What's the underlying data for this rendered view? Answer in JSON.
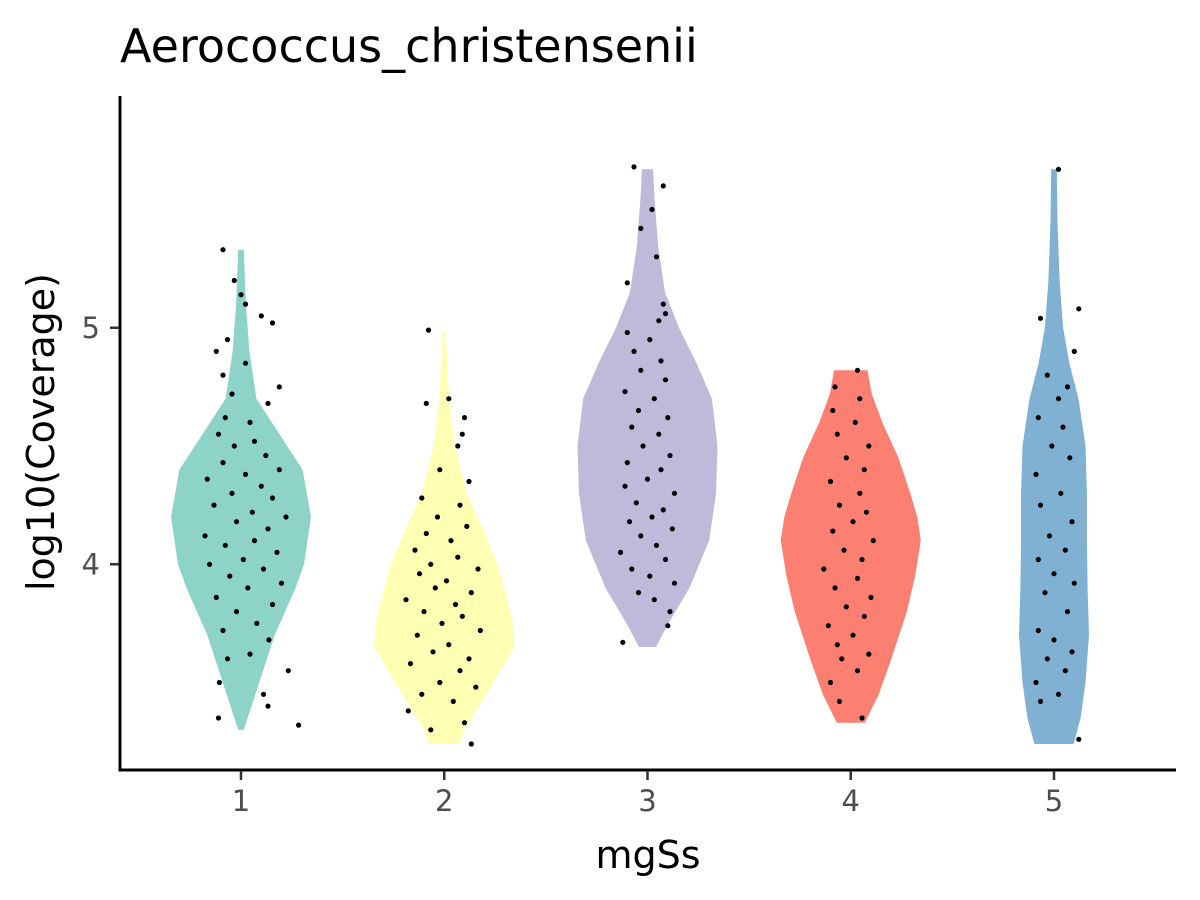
{
  "chart_data": {
    "type": "violin",
    "title": "Aerococcus_christensenii",
    "xlabel": "mgSs",
    "ylabel": "log10(Coverage)",
    "categories": [
      "1",
      "2",
      "3",
      "4",
      "5"
    ],
    "ylim": [
      3.13,
      5.98
    ],
    "yticks": [
      4,
      5
    ],
    "grid": false,
    "legend": "none",
    "groups": [
      {
        "category": "1",
        "color": "#8dd3c7",
        "min": 3.3,
        "max": 5.33,
        "profile": [
          [
            3.3,
            0.04
          ],
          [
            3.5,
            0.26
          ],
          [
            3.7,
            0.48
          ],
          [
            3.9,
            0.78
          ],
          [
            4.0,
            0.9
          ],
          [
            4.2,
            1.0
          ],
          [
            4.4,
            0.88
          ],
          [
            4.55,
            0.55
          ],
          [
            4.7,
            0.22
          ],
          [
            4.9,
            0.12
          ],
          [
            5.1,
            0.07
          ],
          [
            5.33,
            0.04
          ]
        ],
        "points": [
          [
            3.32,
            1.28
          ],
          [
            3.4,
            0.6
          ],
          [
            3.35,
            -0.5
          ],
          [
            3.45,
            0.5
          ],
          [
            3.5,
            -0.48
          ],
          [
            3.55,
            1.05
          ],
          [
            3.6,
            -0.3
          ],
          [
            3.62,
            0.2
          ],
          [
            3.68,
            0.62
          ],
          [
            3.72,
            -0.4
          ],
          [
            3.75,
            0.35
          ],
          [
            3.8,
            -0.1
          ],
          [
            3.83,
            0.7
          ],
          [
            3.86,
            -0.55
          ],
          [
            3.9,
            0.15
          ],
          [
            3.92,
            0.9
          ],
          [
            3.95,
            -0.25
          ],
          [
            3.98,
            0.5
          ],
          [
            4.0,
            -0.7
          ],
          [
            4.02,
            0.05
          ],
          [
            4.05,
            0.8
          ],
          [
            4.08,
            -0.35
          ],
          [
            4.1,
            0.3
          ],
          [
            4.12,
            -0.8
          ],
          [
            4.15,
            0.6
          ],
          [
            4.18,
            -0.1
          ],
          [
            4.2,
            1.0
          ],
          [
            4.22,
            0.25
          ],
          [
            4.25,
            -0.6
          ],
          [
            4.28,
            0.7
          ],
          [
            4.3,
            -0.2
          ],
          [
            4.33,
            0.45
          ],
          [
            4.36,
            -0.75
          ],
          [
            4.38,
            0.1
          ],
          [
            4.4,
            0.85
          ],
          [
            4.43,
            -0.4
          ],
          [
            4.46,
            0.55
          ],
          [
            4.5,
            -0.15
          ],
          [
            4.52,
            0.3
          ],
          [
            4.55,
            -0.5
          ],
          [
            4.6,
            0.2
          ],
          [
            4.62,
            -0.35
          ],
          [
            4.68,
            0.6
          ],
          [
            4.72,
            -0.2
          ],
          [
            4.75,
            0.85
          ],
          [
            4.8,
            -0.4
          ],
          [
            4.85,
            0.1
          ],
          [
            4.9,
            -0.55
          ],
          [
            4.95,
            -0.3
          ],
          [
            5.02,
            0.7
          ],
          [
            5.05,
            0.45
          ],
          [
            5.1,
            0.1
          ],
          [
            5.14,
            0.0
          ],
          [
            5.2,
            -0.15
          ],
          [
            5.33,
            -0.4
          ]
        ]
      },
      {
        "category": "2",
        "color": "#ffffb3",
        "min": 3.24,
        "max": 4.99,
        "profile": [
          [
            3.24,
            0.22
          ],
          [
            3.3,
            0.28
          ],
          [
            3.45,
            0.6
          ],
          [
            3.55,
            0.8
          ],
          [
            3.65,
            1.0
          ],
          [
            3.75,
            0.98
          ],
          [
            3.85,
            0.9
          ],
          [
            4.0,
            0.76
          ],
          [
            4.15,
            0.55
          ],
          [
            4.3,
            0.32
          ],
          [
            4.5,
            0.15
          ],
          [
            4.7,
            0.07
          ],
          [
            4.85,
            0.04
          ],
          [
            4.99,
            0.02
          ]
        ],
        "points": [
          [
            3.24,
            0.6
          ],
          [
            3.3,
            -0.3
          ],
          [
            3.33,
            0.45
          ],
          [
            3.38,
            -0.8
          ],
          [
            3.42,
            0.2
          ],
          [
            3.45,
            -0.5
          ],
          [
            3.48,
            0.7
          ],
          [
            3.5,
            -0.1
          ],
          [
            3.55,
            0.35
          ],
          [
            3.58,
            -0.75
          ],
          [
            3.6,
            0.55
          ],
          [
            3.63,
            -0.25
          ],
          [
            3.66,
            0.1
          ],
          [
            3.7,
            -0.6
          ],
          [
            3.72,
            0.8
          ],
          [
            3.75,
            -0.05
          ],
          [
            3.78,
            0.4
          ],
          [
            3.8,
            -0.45
          ],
          [
            3.83,
            0.25
          ],
          [
            3.85,
            -0.85
          ],
          [
            3.88,
            0.6
          ],
          [
            3.9,
            -0.2
          ],
          [
            3.93,
            0.05
          ],
          [
            3.96,
            -0.55
          ],
          [
            3.98,
            0.75
          ],
          [
            4.0,
            -0.3
          ],
          [
            4.03,
            0.3
          ],
          [
            4.06,
            -0.65
          ],
          [
            4.1,
            0.15
          ],
          [
            4.13,
            -0.4
          ],
          [
            4.16,
            0.5
          ],
          [
            4.2,
            -0.15
          ],
          [
            4.25,
            0.35
          ],
          [
            4.28,
            -0.5
          ],
          [
            4.35,
            0.55
          ],
          [
            4.4,
            -0.1
          ],
          [
            4.5,
            0.3
          ],
          [
            4.55,
            0.4
          ],
          [
            4.62,
            0.45
          ],
          [
            4.68,
            -0.4
          ],
          [
            4.7,
            0.1
          ],
          [
            4.99,
            -0.35
          ]
        ]
      },
      {
        "category": "3",
        "color": "#bebada",
        "min": 3.65,
        "max": 5.67,
        "profile": [
          [
            3.65,
            0.12
          ],
          [
            3.75,
            0.3
          ],
          [
            3.9,
            0.6
          ],
          [
            4.1,
            0.88
          ],
          [
            4.3,
            0.98
          ],
          [
            4.5,
            1.0
          ],
          [
            4.7,
            0.92
          ],
          [
            4.85,
            0.7
          ],
          [
            5.0,
            0.45
          ],
          [
            5.15,
            0.25
          ],
          [
            5.35,
            0.15
          ],
          [
            5.55,
            0.1
          ],
          [
            5.67,
            0.08
          ]
        ],
        "points": [
          [
            3.67,
            -0.55
          ],
          [
            3.74,
            0.45
          ],
          [
            3.8,
            0.5
          ],
          [
            3.85,
            0.15
          ],
          [
            3.88,
            -0.2
          ],
          [
            3.92,
            0.6
          ],
          [
            3.95,
            0.05
          ],
          [
            3.98,
            -0.35
          ],
          [
            4.02,
            0.4
          ],
          [
            4.05,
            -0.6
          ],
          [
            4.08,
            0.2
          ],
          [
            4.12,
            -0.15
          ],
          [
            4.15,
            0.55
          ],
          [
            4.18,
            -0.4
          ],
          [
            4.2,
            0.1
          ],
          [
            4.23,
            0.35
          ],
          [
            4.26,
            -0.25
          ],
          [
            4.3,
            0.6
          ],
          [
            4.33,
            -0.5
          ],
          [
            4.36,
            0.0
          ],
          [
            4.4,
            0.3
          ],
          [
            4.43,
            -0.45
          ],
          [
            4.46,
            0.5
          ],
          [
            4.5,
            -0.1
          ],
          [
            4.55,
            0.25
          ],
          [
            4.58,
            -0.35
          ],
          [
            4.62,
            0.45
          ],
          [
            4.65,
            -0.2
          ],
          [
            4.7,
            0.15
          ],
          [
            4.73,
            -0.5
          ],
          [
            4.78,
            0.4
          ],
          [
            4.82,
            -0.15
          ],
          [
            4.86,
            0.3
          ],
          [
            4.9,
            -0.3
          ],
          [
            4.95,
            0.05
          ],
          [
            4.98,
            -0.45
          ],
          [
            5.03,
            0.25
          ],
          [
            5.06,
            0.4
          ],
          [
            5.1,
            0.35
          ],
          [
            5.19,
            -0.45
          ],
          [
            5.3,
            0.2
          ],
          [
            5.42,
            -0.15
          ],
          [
            5.5,
            0.1
          ],
          [
            5.6,
            0.35
          ],
          [
            5.68,
            -0.3
          ]
        ]
      },
      {
        "category": "4",
        "color": "#fb8072",
        "min": 3.33,
        "max": 4.82,
        "profile": [
          [
            3.33,
            0.2
          ],
          [
            3.45,
            0.4
          ],
          [
            3.6,
            0.58
          ],
          [
            3.8,
            0.8
          ],
          [
            3.95,
            0.92
          ],
          [
            4.1,
            1.0
          ],
          [
            4.2,
            0.95
          ],
          [
            4.3,
            0.85
          ],
          [
            4.45,
            0.68
          ],
          [
            4.6,
            0.45
          ],
          [
            4.72,
            0.3
          ],
          [
            4.82,
            0.24
          ]
        ],
        "points": [
          [
            3.35,
            0.25
          ],
          [
            3.42,
            -0.25
          ],
          [
            3.5,
            -0.45
          ],
          [
            3.55,
            0.15
          ],
          [
            3.6,
            -0.2
          ],
          [
            3.62,
            0.4
          ],
          [
            3.66,
            -0.3
          ],
          [
            3.7,
            0.05
          ],
          [
            3.74,
            -0.5
          ],
          [
            3.78,
            0.3
          ],
          [
            3.82,
            -0.1
          ],
          [
            3.86,
            0.45
          ],
          [
            3.9,
            -0.35
          ],
          [
            3.94,
            0.15
          ],
          [
            3.98,
            -0.6
          ],
          [
            4.02,
            0.25
          ],
          [
            4.06,
            -0.15
          ],
          [
            4.1,
            0.5
          ],
          [
            4.14,
            -0.4
          ],
          [
            4.18,
            0.05
          ],
          [
            4.22,
            0.35
          ],
          [
            4.25,
            -0.25
          ],
          [
            4.3,
            0.2
          ],
          [
            4.35,
            -0.45
          ],
          [
            4.4,
            0.3
          ],
          [
            4.45,
            -0.1
          ],
          [
            4.5,
            0.4
          ],
          [
            4.55,
            -0.3
          ],
          [
            4.6,
            0.1
          ],
          [
            4.65,
            -0.4
          ],
          [
            4.7,
            0.2
          ],
          [
            4.75,
            -0.35
          ],
          [
            4.82,
            0.15
          ]
        ]
      },
      {
        "category": "5",
        "color": "#80b1d3",
        "min": 3.24,
        "max": 5.67,
        "profile": [
          [
            3.24,
            0.28
          ],
          [
            3.35,
            0.38
          ],
          [
            3.5,
            0.45
          ],
          [
            3.7,
            0.5
          ],
          [
            3.9,
            0.48
          ],
          [
            4.1,
            0.47
          ],
          [
            4.3,
            0.47
          ],
          [
            4.5,
            0.45
          ],
          [
            4.7,
            0.35
          ],
          [
            4.85,
            0.22
          ],
          [
            5.0,
            0.13
          ],
          [
            5.2,
            0.08
          ],
          [
            5.45,
            0.05
          ],
          [
            5.67,
            0.04
          ]
        ],
        "points": [
          [
            3.26,
            0.55
          ],
          [
            3.42,
            -0.3
          ],
          [
            3.45,
            0.1
          ],
          [
            3.5,
            -0.4
          ],
          [
            3.55,
            0.25
          ],
          [
            3.6,
            -0.15
          ],
          [
            3.63,
            0.4
          ],
          [
            3.68,
            0.0
          ],
          [
            3.72,
            -0.35
          ],
          [
            3.8,
            0.3
          ],
          [
            3.88,
            -0.2
          ],
          [
            3.92,
            0.45
          ],
          [
            3.96,
            0.0
          ],
          [
            4.02,
            -0.35
          ],
          [
            4.06,
            0.25
          ],
          [
            4.12,
            -0.1
          ],
          [
            4.18,
            0.4
          ],
          [
            4.25,
            -0.3
          ],
          [
            4.3,
            0.15
          ],
          [
            4.38,
            -0.4
          ],
          [
            4.45,
            0.35
          ],
          [
            4.5,
            -0.05
          ],
          [
            4.58,
            0.2
          ],
          [
            4.62,
            -0.35
          ],
          [
            4.7,
            0.1
          ],
          [
            4.75,
            0.3
          ],
          [
            4.8,
            -0.15
          ],
          [
            4.9,
            0.45
          ],
          [
            5.04,
            -0.3
          ],
          [
            5.08,
            0.55
          ],
          [
            5.67,
            0.1
          ]
        ]
      }
    ]
  }
}
